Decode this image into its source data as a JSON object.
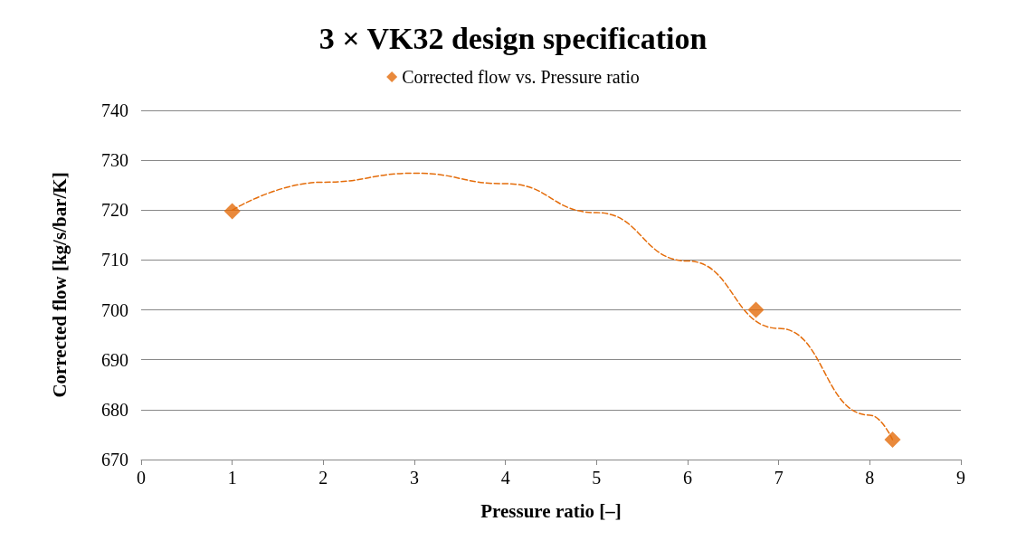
{
  "chart_data": {
    "type": "scatter",
    "title": "3 × VK32 design specification",
    "xlabel": "Pressure ratio [–]",
    "ylabel": "Corrected flow [kg/s/bar/K]",
    "xlim": [
      0,
      9
    ],
    "xticks": [
      0,
      1,
      2,
      3,
      4,
      5,
      6,
      7,
      8,
      9
    ],
    "ylim": [
      670,
      740
    ],
    "yticks": [
      670,
      680,
      690,
      700,
      710,
      720,
      730,
      740
    ],
    "grid": "y",
    "legend": "top",
    "series": [
      {
        "name": "Corrected flow vs. Pressure ratio",
        "color": "#e46c0a",
        "marker": "diamond",
        "x": [
          1,
          6.75,
          8.25
        ],
        "values": [
          719.8,
          700,
          674
        ]
      },
      {
        "type": "line",
        "color": "#e46c0a",
        "marker": "none",
        "line_style": "dashed",
        "x": [
          1,
          2,
          3,
          4,
          5,
          6,
          7,
          8,
          8.25
        ],
        "values": [
          720,
          725.6,
          727.4,
          725.3,
          719.5,
          709.8,
          696.3,
          678.9,
          674
        ]
      }
    ]
  }
}
